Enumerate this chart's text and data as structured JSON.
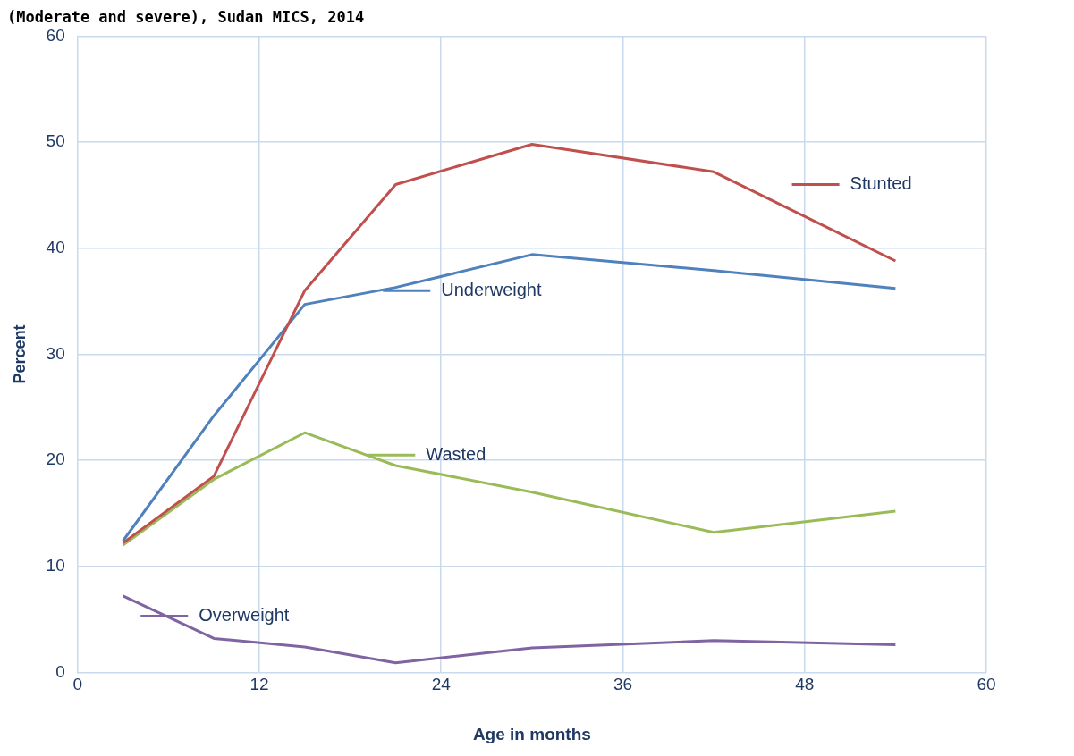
{
  "chart_data": {
    "type": "line",
    "title": "(Moderate and severe), Sudan MICS, 2014",
    "xlabel": "Age in months",
    "ylabel": "Percent",
    "x": [
      3,
      9,
      15,
      21,
      30,
      42,
      54
    ],
    "series": [
      {
        "name": "Stunted",
        "color": "#c0504d",
        "values": [
          12.2,
          18.5,
          36.0,
          46.0,
          49.8,
          47.2,
          38.8
        ]
      },
      {
        "name": "Underweight",
        "color": "#4f81bd",
        "values": [
          12.4,
          24.2,
          34.7,
          36.3,
          39.4,
          37.9,
          36.2
        ]
      },
      {
        "name": "Wasted",
        "color": "#9bbb59",
        "values": [
          12.0,
          18.2,
          22.6,
          19.5,
          17.0,
          13.2,
          15.2
        ]
      },
      {
        "name": "Overweight",
        "color": "#8064a2",
        "values": [
          7.2,
          3.2,
          2.4,
          0.9,
          2.3,
          3.0,
          2.6
        ]
      }
    ],
    "xlim": [
      0,
      60
    ],
    "xticks": [
      0,
      12,
      24,
      36,
      48,
      60
    ],
    "ylim": [
      0,
      60
    ],
    "yticks": [
      0,
      10,
      20,
      30,
      40,
      50,
      60
    ],
    "grid": true,
    "marker": "none",
    "line_style": "solid",
    "legend": "right"
  }
}
